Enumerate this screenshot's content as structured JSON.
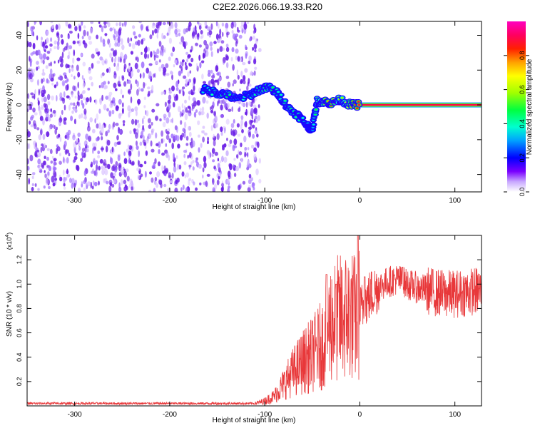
{
  "title": "C2E2.2026.066.19.33.R20",
  "chart_data": [
    {
      "type": "heatmap",
      "xlabel": "Height of straight line (km)",
      "ylabel": "Frequency (Hz)",
      "xlim": [
        -350,
        128
      ],
      "ylim": [
        -50,
        48
      ],
      "xticks": [
        -300,
        -200,
        -100,
        0,
        100
      ],
      "yticks": [
        -40,
        -20,
        0,
        20,
        40
      ],
      "noise_region": {
        "x_range": [
          -350,
          -105
        ],
        "freq_range": [
          -50,
          48
        ],
        "amplitude": 0.15
      },
      "signal_track": [
        {
          "x": -165,
          "f": 9,
          "a": 0.35
        },
        {
          "x": -150,
          "f": 7,
          "a": 0.42
        },
        {
          "x": -140,
          "f": 6,
          "a": 0.48
        },
        {
          "x": -130,
          "f": 3,
          "a": 0.4
        },
        {
          "x": -115,
          "f": 6,
          "a": 0.38
        },
        {
          "x": -105,
          "f": 9,
          "a": 0.45
        },
        {
          "x": -95,
          "f": 10,
          "a": 0.5
        },
        {
          "x": -85,
          "f": 6,
          "a": 0.38
        },
        {
          "x": -75,
          "f": -2,
          "a": 0.45
        },
        {
          "x": -65,
          "f": -6,
          "a": 0.42
        },
        {
          "x": -55,
          "f": -12,
          "a": 0.33
        },
        {
          "x": -50,
          "f": -14,
          "a": 0.28
        },
        {
          "x": -45,
          "f": 2,
          "a": 0.55
        },
        {
          "x": -38,
          "f": 2,
          "a": 0.72
        },
        {
          "x": -30,
          "f": 1,
          "a": 0.8
        },
        {
          "x": -20,
          "f": 3,
          "a": 0.55
        },
        {
          "x": -10,
          "f": 0,
          "a": 0.75
        },
        {
          "x": 0,
          "f": 0,
          "a": 0.9
        },
        {
          "x": 128,
          "f": 0,
          "a": 1.0
        }
      ],
      "colorbar": {
        "label": "Normalized spectral amplitude",
        "range": [
          0,
          1
        ],
        "ticks": [
          "0.0",
          "0.2",
          "0.4",
          "0.6",
          "0.8"
        ]
      }
    },
    {
      "type": "line",
      "xlabel": "Height of straight line (km)",
      "ylabel": "SNR (10 * v/v)",
      "multiplier": "(x10",
      "multiplier_exp": "4",
      "multiplier_close": ")",
      "xlim": [
        -350,
        128
      ],
      "ylim": [
        0,
        1.4
      ],
      "xticks": [
        -300,
        -200,
        -100,
        0,
        100
      ],
      "yticks": [
        "0.2",
        "0.4",
        "0.6",
        "0.8",
        "1.0",
        "1.2"
      ],
      "color": "#e8383a",
      "envelope": [
        {
          "x": -350,
          "y": 0.02
        },
        {
          "x": -110,
          "y": 0.02
        },
        {
          "x": -100,
          "y": 0.04
        },
        {
          "x": -90,
          "y": 0.08
        },
        {
          "x": -80,
          "y": 0.18
        },
        {
          "x": -70,
          "y": 0.28
        },
        {
          "x": -60,
          "y": 0.36
        },
        {
          "x": -50,
          "y": 0.42
        },
        {
          "x": -40,
          "y": 0.5
        },
        {
          "x": -35,
          "y": 0.6
        },
        {
          "x": -30,
          "y": 0.7
        },
        {
          "x": -20,
          "y": 0.72
        },
        {
          "x": -10,
          "y": 0.75
        },
        {
          "x": -5,
          "y": 0.72
        },
        {
          "x": 0,
          "y": 0.78
        },
        {
          "x": 10,
          "y": 0.9
        },
        {
          "x": 20,
          "y": 0.98
        },
        {
          "x": 30,
          "y": 1.02
        },
        {
          "x": 40,
          "y": 1.04
        },
        {
          "x": 50,
          "y": 1.0
        },
        {
          "x": 60,
          "y": 0.97
        },
        {
          "x": 70,
          "y": 0.95
        },
        {
          "x": 80,
          "y": 0.93
        },
        {
          "x": 90,
          "y": 0.92
        },
        {
          "x": 100,
          "y": 0.92
        },
        {
          "x": 110,
          "y": 0.93
        },
        {
          "x": 128,
          "y": 0.95
        }
      ],
      "peaks": [
        {
          "x": -35,
          "y": 1.08
        },
        {
          "x": -25,
          "y": 1.0
        },
        {
          "x": -2,
          "y": 1.4
        },
        {
          "x": 5,
          "y": 1.06
        },
        {
          "x": 45,
          "y": 1.14
        }
      ]
    }
  ]
}
